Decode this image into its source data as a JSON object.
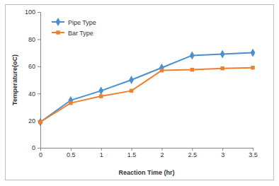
{
  "chart_data": {
    "type": "line",
    "x_label": "Reaction Time (hr)",
    "y_label": "Temperature(oC)",
    "x": [
      0,
      0.5,
      1,
      1.5,
      2,
      2.5,
      3,
      3.5
    ],
    "series": [
      {
        "name": "Pipe Type",
        "color": "#4a90d0",
        "marker": "diamond",
        "values": [
          19,
          35,
          42,
          50,
          59,
          68,
          69,
          70
        ]
      },
      {
        "name": "Bar Type",
        "color": "#f07f2f",
        "marker": "square",
        "values": [
          19,
          33,
          38,
          42,
          57,
          57.5,
          58.5,
          59
        ]
      }
    ],
    "xlim": [
      0,
      3.5
    ],
    "xticks": [
      0,
      0.5,
      1,
      1.5,
      2,
      2.5,
      3,
      3.5
    ],
    "ylim": [
      0,
      100
    ],
    "yticks": [
      0,
      20,
      40,
      60,
      80,
      100
    ],
    "grid": false,
    "legend": "upper left"
  }
}
